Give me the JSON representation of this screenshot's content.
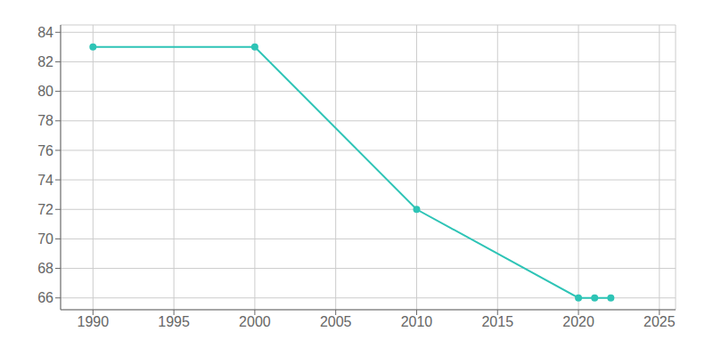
{
  "chart_data": {
    "type": "line",
    "x": [
      1990,
      2000,
      2010,
      2020,
      2021,
      2022
    ],
    "values": [
      83,
      83,
      72,
      66,
      66,
      66
    ],
    "color": "#2ec4b6",
    "marker": "circle",
    "xlim": [
      1988,
      2026
    ],
    "ylim": [
      65.2,
      84.5
    ],
    "xticks": [
      1990,
      1995,
      2000,
      2005,
      2010,
      2015,
      2020,
      2025
    ],
    "yticks": [
      66,
      68,
      70,
      72,
      74,
      76,
      78,
      80,
      82,
      84
    ],
    "grid": true
  }
}
